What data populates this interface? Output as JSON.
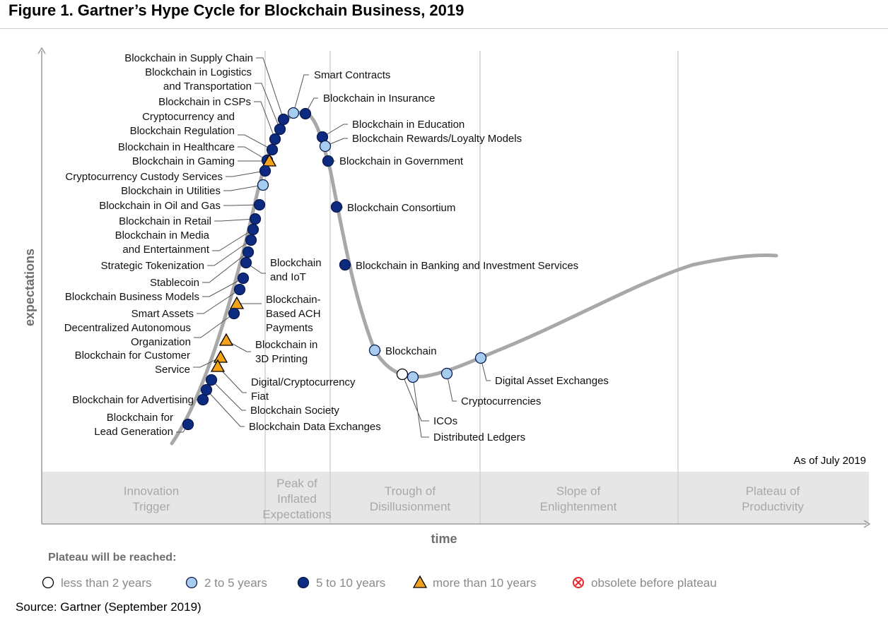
{
  "figure_title": "Figure 1. Gartner’s Hype Cycle for Blockchain Business, 2019",
  "source": "Source: Gartner (September 2019)",
  "as_of": "As of July 2019",
  "axis": {
    "y": "expectations",
    "x": "time"
  },
  "phases": [
    {
      "lines": [
        "Innovation",
        "Trigger"
      ]
    },
    {
      "lines": [
        "Peak of",
        "Inflated",
        "Expectations"
      ]
    },
    {
      "lines": [
        "Trough of",
        "Disillusionment"
      ]
    },
    {
      "lines": [
        "Slope of",
        "Enlightenment"
      ]
    },
    {
      "lines": [
        "Plateau of",
        "Productivity"
      ]
    }
  ],
  "legend": {
    "title": "Plateau will be reached:",
    "items": [
      {
        "key": "lt2",
        "label": "less than 2 years"
      },
      {
        "key": "2to5",
        "label": "2 to 5 years"
      },
      {
        "key": "5to10",
        "label": "5 to 10 years"
      },
      {
        "key": "gt10",
        "label": "more than 10 years"
      },
      {
        "key": "obsolete",
        "label": "obsolete before plateau"
      }
    ]
  },
  "colors": {
    "lt2": "#ffffff",
    "2to5": "#a6cdf0",
    "5to10": "#0c2a80",
    "gt10": "#f5a21b",
    "obsolete": "#e8252b",
    "curve": "#a8a8a8",
    "band": "#e6e6e6",
    "phase_text": "#a8a8a8"
  },
  "technologies": [
    {
      "lines": [
        "Blockchain in Supply Chain"
      ],
      "marker": "5to10"
    },
    {
      "lines": [
        "Blockchain in Logistics",
        "and Transportation"
      ],
      "marker": "5to10"
    },
    {
      "lines": [
        "Smart Contracts"
      ],
      "marker": "2to5"
    },
    {
      "lines": [
        "Blockchain in Insurance"
      ],
      "marker": "5to10"
    },
    {
      "lines": [
        "Blockchain in CSPs"
      ],
      "marker": "5to10"
    },
    {
      "lines": [
        "Cryptocurrency and",
        "Blockchain Regulation"
      ],
      "marker": "5to10"
    },
    {
      "lines": [
        "Blockchain in Healthcare"
      ],
      "marker": "5to10"
    },
    {
      "lines": [
        "Blockchain in Gaming"
      ],
      "marker": "gt10"
    },
    {
      "lines": [
        "Cryptocurrency Custody Services"
      ],
      "marker": "5to10"
    },
    {
      "lines": [
        "Blockchain in Utilities"
      ],
      "marker": "2to5"
    },
    {
      "lines": [
        "Blockchain in Oil and Gas"
      ],
      "marker": "5to10"
    },
    {
      "lines": [
        "Blockchain in Retail"
      ],
      "marker": "5to10"
    },
    {
      "lines": [
        "Blockchain in Media",
        "and Entertainment"
      ],
      "marker": "5to10"
    },
    {
      "lines": [
        "Strategic Tokenization"
      ],
      "marker": "5to10"
    },
    {
      "lines": [
        "Stablecoin"
      ],
      "marker": "5to10"
    },
    {
      "lines": [
        "Blockchain",
        "and IoT"
      ],
      "marker": "5to10"
    },
    {
      "lines": [
        "Blockchain Business Models"
      ],
      "marker": "5to10"
    },
    {
      "lines": [
        "Smart Assets"
      ],
      "marker": "5to10"
    },
    {
      "lines": [
        "Blockchain-",
        "Based ACH",
        "Payments"
      ],
      "marker": "gt10"
    },
    {
      "lines": [
        "Decentralized Autonomous",
        "Organization"
      ],
      "marker": "5to10"
    },
    {
      "lines": [
        "Blockchain in",
        "3D Printing"
      ],
      "marker": "gt10"
    },
    {
      "lines": [
        "Blockchain for Customer",
        "Service"
      ],
      "marker": "gt10"
    },
    {
      "lines": [
        "Digital/Cryptocurrency",
        "Fiat"
      ],
      "marker": "gt10"
    },
    {
      "lines": [
        "Blockchain Society"
      ],
      "marker": "5to10"
    },
    {
      "lines": [
        "Blockchain for Advertising"
      ],
      "marker": "5to10"
    },
    {
      "lines": [
        "Blockchain Data Exchanges"
      ],
      "marker": "5to10"
    },
    {
      "lines": [
        "Blockchain for",
        "Lead Generation"
      ],
      "marker": "5to10"
    },
    {
      "lines": [
        "Blockchain in Education"
      ],
      "marker": "5to10"
    },
    {
      "lines": [
        "Blockchain Rewards/Loyalty Models"
      ],
      "marker": "2to5"
    },
    {
      "lines": [
        "Blockchain in Government"
      ],
      "marker": "5to10"
    },
    {
      "lines": [
        "Blockchain Consortium"
      ],
      "marker": "5to10"
    },
    {
      "lines": [
        "Blockchain in Banking and Investment Services"
      ],
      "marker": "5to10"
    },
    {
      "lines": [
        "Blockchain"
      ],
      "marker": "2to5"
    },
    {
      "lines": [
        "ICOs"
      ],
      "marker": "lt2"
    },
    {
      "lines": [
        "Distributed Ledgers"
      ],
      "marker": "2to5"
    },
    {
      "lines": [
        "Cryptocurrencies"
      ],
      "marker": "2to5"
    },
    {
      "lines": [
        "Digital Asset Exchanges"
      ],
      "marker": "2to5"
    }
  ]
}
